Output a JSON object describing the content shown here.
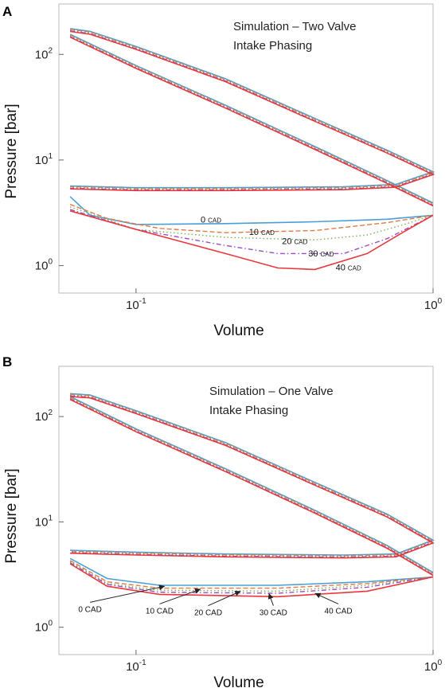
{
  "chart_data": [
    {
      "panel_label": "A",
      "type": "line",
      "title_lines": [
        "Simulation – Two Valve",
        "Intake Phasing"
      ],
      "xlabel": "Volume",
      "ylabel": "Pressure [bar]",
      "xscale": "log",
      "yscale": "log",
      "xlim": [
        0.055,
        1.0
      ],
      "ylim": [
        0.55,
        300
      ],
      "x_ticks": [
        {
          "base": "10",
          "exp": "-1",
          "value": 0.1
        },
        {
          "base": "10",
          "exp": "0",
          "value": 1
        }
      ],
      "y_ticks": [
        {
          "base": "10",
          "exp": "0",
          "value": 1
        },
        {
          "base": "10",
          "exp": "1",
          "value": 10
        },
        {
          "base": "10",
          "exp": "2",
          "value": 100
        }
      ],
      "colors": {
        "0 CAD": "#4a9fd8",
        "10 CAD": "#e07b45",
        "20 CAD": "#77b055",
        "30 CAD": "#9b4fc2",
        "40 CAD": "#e8383d"
      },
      "high_loop": [
        [
          0.06,
          170
        ],
        [
          0.07,
          160
        ],
        [
          0.1,
          115
        ],
        [
          0.2,
          57
        ],
        [
          0.4,
          24
        ],
        [
          0.7,
          12
        ],
        [
          1.0,
          7.5
        ],
        [
          0.75,
          5.7
        ],
        [
          0.5,
          5.4
        ],
        [
          0.2,
          5.3
        ],
        [
          0.1,
          5.3
        ],
        [
          0.06,
          5.5
        ]
      ],
      "compression_line": [
        [
          0.06,
          150
        ],
        [
          0.1,
          76
        ],
        [
          0.2,
          32
        ],
        [
          0.4,
          13
        ],
        [
          0.7,
          6.2
        ],
        [
          1.0,
          3.8
        ]
      ],
      "series": [
        {
          "name": "0 CAD",
          "label_num": "0",
          "label_unit": "CAD",
          "label_pos": [
            0.165,
            2.55
          ],
          "points": [
            [
              0.06,
              4.5
            ],
            [
              0.07,
              3.0
            ],
            [
              0.1,
              2.45
            ],
            [
              0.2,
              2.5
            ],
            [
              0.4,
              2.6
            ],
            [
              0.7,
              2.75
            ],
            [
              1.0,
              3.0
            ]
          ]
        },
        {
          "name": "10 CAD",
          "label_num": "10",
          "label_unit": "CAD",
          "label_pos": [
            0.24,
            1.95
          ],
          "points": [
            [
              0.06,
              3.8
            ],
            [
              0.08,
              2.8
            ],
            [
              0.12,
              2.25
            ],
            [
              0.2,
              2.05
            ],
            [
              0.4,
              2.15
            ],
            [
              0.7,
              2.55
            ],
            [
              1.0,
              3.0
            ]
          ]
        },
        {
          "name": "20 CAD",
          "label_num": "20",
          "label_unit": "CAD",
          "label_pos": [
            0.31,
            1.6
          ],
          "points": [
            [
              0.06,
              3.6
            ],
            [
              0.1,
              2.2
            ],
            [
              0.2,
              1.85
            ],
            [
              0.4,
              1.75
            ],
            [
              0.6,
              1.95
            ],
            [
              0.8,
              2.45
            ],
            [
              1.0,
              3.0
            ]
          ]
        },
        {
          "name": "30 CAD",
          "label_num": "30",
          "label_unit": "CAD",
          "label_pos": [
            0.38,
            1.22
          ],
          "points": [
            [
              0.06,
              3.4
            ],
            [
              0.1,
              2.2
            ],
            [
              0.2,
              1.55
            ],
            [
              0.3,
              1.3
            ],
            [
              0.5,
              1.3
            ],
            [
              0.7,
              1.8
            ],
            [
              1.0,
              3.0
            ]
          ]
        },
        {
          "name": "40 CAD",
          "label_num": "40",
          "label_unit": "CAD",
          "label_pos": [
            0.47,
            0.9
          ],
          "points": [
            [
              0.06,
              3.3
            ],
            [
              0.1,
              2.2
            ],
            [
              0.2,
              1.3
            ],
            [
              0.3,
              0.95
            ],
            [
              0.4,
              0.92
            ],
            [
              0.6,
              1.3
            ],
            [
              0.8,
              2.1
            ],
            [
              1.0,
              3.0
            ]
          ]
        }
      ]
    },
    {
      "panel_label": "B",
      "type": "line",
      "title_lines": [
        "Simulation – One Valve",
        "Intake Phasing"
      ],
      "xlabel": "Volume",
      "ylabel": "Pressure [bar]",
      "xscale": "log",
      "yscale": "log",
      "xlim": [
        0.055,
        1.0
      ],
      "ylim": [
        0.55,
        300
      ],
      "x_ticks": [
        {
          "base": "10",
          "exp": "-1",
          "value": 0.1
        },
        {
          "base": "10",
          "exp": "0",
          "value": 1
        }
      ],
      "y_ticks": [
        {
          "base": "10",
          "exp": "0",
          "value": 1
        },
        {
          "base": "10",
          "exp": "1",
          "value": 10
        },
        {
          "base": "10",
          "exp": "2",
          "value": 100
        }
      ],
      "colors": {
        "0 CAD": "#4a9fd8",
        "10 CAD": "#e07b45",
        "20 CAD": "#77b055",
        "30 CAD": "#9b4fc2",
        "40 CAD": "#e8383d"
      },
      "high_loop": [
        [
          0.06,
          160
        ],
        [
          0.07,
          155
        ],
        [
          0.1,
          110
        ],
        [
          0.2,
          55
        ],
        [
          0.4,
          23
        ],
        [
          0.7,
          11.5
        ],
        [
          1.0,
          6.5
        ],
        [
          0.75,
          4.8
        ],
        [
          0.5,
          4.7
        ],
        [
          0.2,
          4.8
        ],
        [
          0.1,
          5.0
        ],
        [
          0.06,
          5.2
        ]
      ],
      "compression_line": [
        [
          0.06,
          150
        ],
        [
          0.1,
          74
        ],
        [
          0.2,
          31
        ],
        [
          0.4,
          12.5
        ],
        [
          0.7,
          5.8
        ],
        [
          1.0,
          3.2
        ]
      ],
      "series": [
        {
          "name": "0 CAD",
          "label_num": "0",
          "label_unit": "CAD",
          "arrow_from": [
            0.07,
            1.4
          ],
          "arrow_to": [
            0.125,
            2.45
          ],
          "points": [
            [
              0.06,
              4.5
            ],
            [
              0.08,
              2.9
            ],
            [
              0.12,
              2.5
            ],
            [
              0.3,
              2.5
            ],
            [
              0.6,
              2.7
            ],
            [
              1.0,
              3.0
            ]
          ]
        },
        {
          "name": "10 CAD",
          "label_num": "10",
          "label_unit": "CAD",
          "arrow_from": [
            0.12,
            1.35
          ],
          "arrow_to": [
            0.165,
            2.3
          ],
          "points": [
            [
              0.06,
              4.3
            ],
            [
              0.08,
              2.7
            ],
            [
              0.12,
              2.35
            ],
            [
              0.3,
              2.35
            ],
            [
              0.6,
              2.6
            ],
            [
              1.0,
              3.0
            ]
          ]
        },
        {
          "name": "20 CAD",
          "label_num": "20",
          "label_unit": "CAD",
          "arrow_from": [
            0.175,
            1.3
          ],
          "arrow_to": [
            0.225,
            2.2
          ],
          "points": [
            [
              0.06,
              4.2
            ],
            [
              0.08,
              2.6
            ],
            [
              0.12,
              2.25
            ],
            [
              0.3,
              2.2
            ],
            [
              0.6,
              2.5
            ],
            [
              1.0,
              3.0
            ]
          ]
        },
        {
          "name": "30 CAD",
          "label_num": "30",
          "label_unit": "CAD",
          "arrow_from": [
            0.29,
            1.3
          ],
          "arrow_to": [
            0.28,
            2.1
          ],
          "points": [
            [
              0.06,
              4.1
            ],
            [
              0.08,
              2.55
            ],
            [
              0.12,
              2.15
            ],
            [
              0.3,
              2.1
            ],
            [
              0.6,
              2.4
            ],
            [
              1.0,
              3.0
            ]
          ]
        },
        {
          "name": "40 CAD",
          "label_num": "40",
          "label_unit": "CAD",
          "arrow_from": [
            0.48,
            1.35
          ],
          "arrow_to": [
            0.4,
            2.1
          ],
          "points": [
            [
              0.06,
              4.0
            ],
            [
              0.08,
              2.45
            ],
            [
              0.12,
              2.05
            ],
            [
              0.3,
              1.95
            ],
            [
              0.6,
              2.2
            ],
            [
              1.0,
              3.0
            ]
          ]
        }
      ]
    }
  ]
}
